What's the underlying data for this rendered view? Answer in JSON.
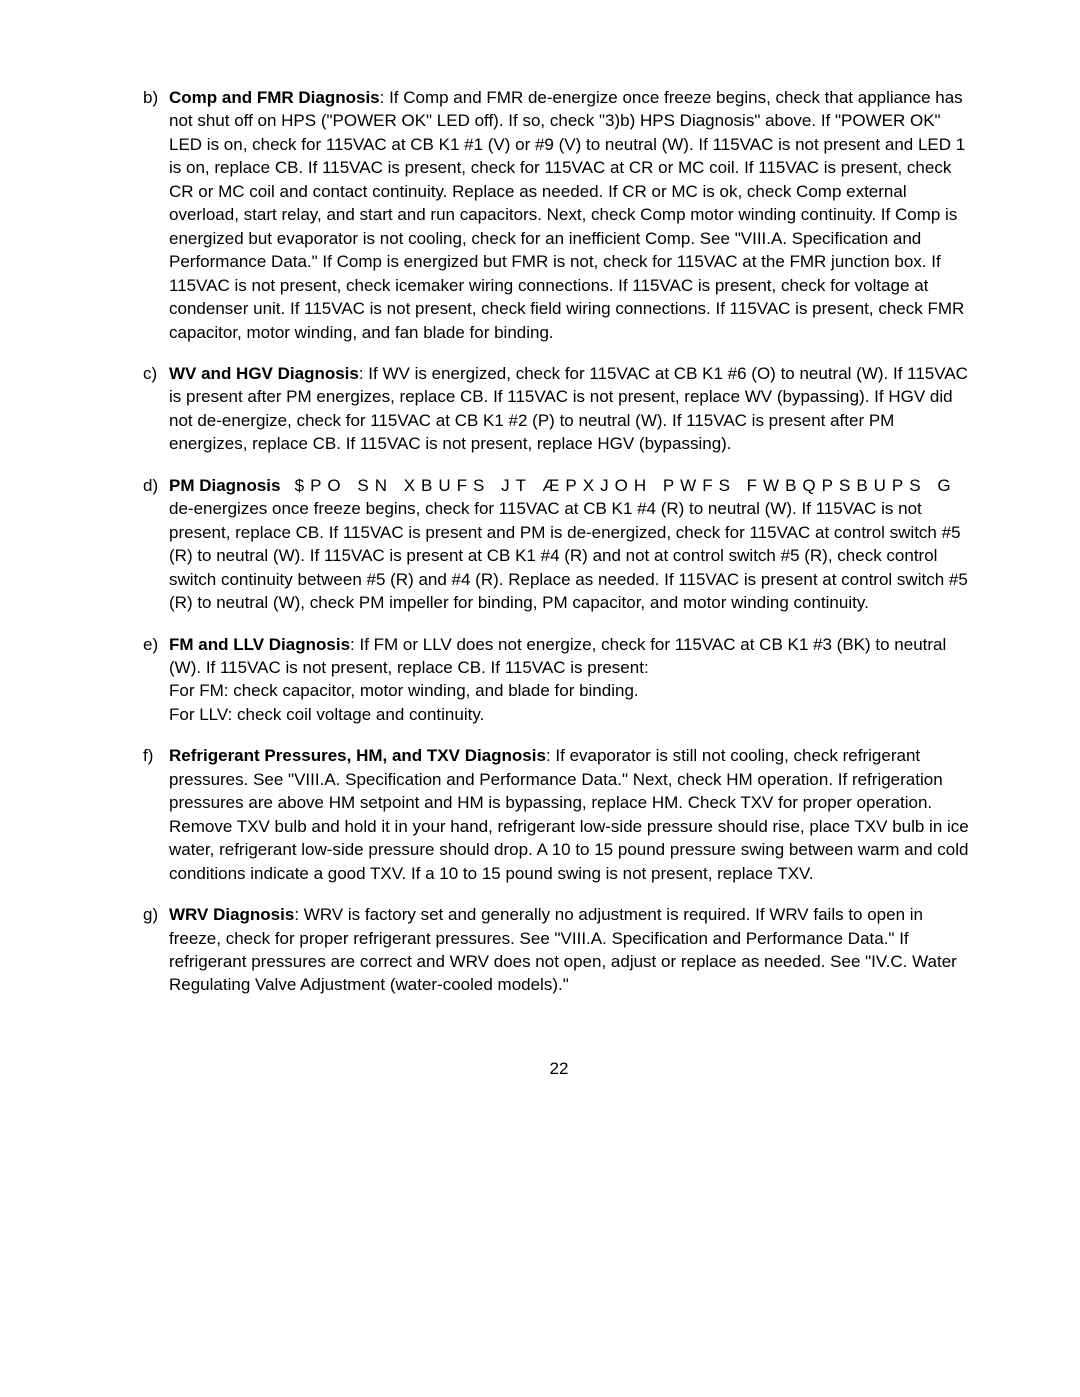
{
  "page_number": "22",
  "items": [
    {
      "marker": "b)",
      "title": "Comp and FMR Diagnosis",
      "text": ": If Comp and FMR de-energize once freeze begins, check that appliance has not shut off on HPS (\"POWER OK\" LED off). If so, check \"3)b) HPS Diagnosis\" above. If \"POWER OK\" LED is on, check for 115VAC at CB K1 #1 (V) or #9 (V) to neutral (W). If 115VAC is not present and LED 1 is on, replace CB. If 115VAC is present, check for 115VAC at CR or MC coil. If 115VAC is present, check CR or MC coil and contact continuity. Replace as needed. If CR or MC is ok, check Comp external overload, start relay, and start and run capacitors. Next, check Comp motor winding continuity. If Comp is energized but evaporator is not cooling, check for an inefficient Comp. See \"VIII.A. Specification and Performance Data.\" If Comp is energized but FMR is not, check for 115VAC at the FMR junction box. If 115VAC is not present, check icemaker wiring connections. If 115VAC is present, check for voltage at condenser unit. If 115VAC is not present, check field wiring connections. If 115VAC is present, check FMR capacitor, motor winding, and fan blade for binding."
    },
    {
      "marker": "c)",
      "title": "WV and HGV Diagnosis",
      "text": ": If WV is energized, check for 115VAC at CB K1 #6 (O) to neutral (W). If 115VAC is present after PM energizes, replace CB. If 115VAC is not present, replace WV (bypassing). If HGV did not de-energize, check for 115VAC at CB K1 #2 (P) to neutral (W). If 115VAC is present after PM energizes, replace CB. If 115VAC is not present, replace HGV (bypassing)."
    },
    {
      "marker": "d)",
      "title": "PM Diagnosis",
      "tracked": "$PO SN XBUFS JT ÆPXJOH PWFS FWBQPSBUPS G",
      "text": "de-energizes once freeze begins, check for 115VAC at CB K1 #4 (R) to neutral (W). If 115VAC is not present, replace CB. If 115VAC is present and PM is de-energized, check for 115VAC at control switch #5 (R) to neutral (W). If 115VAC is present at CB K1 #4 (R) and not at control switch #5 (R), check control switch continuity between #5 (R) and #4 (R). Replace as needed. If 115VAC is present at control switch #5 (R) to neutral (W), check PM impeller for binding, PM capacitor, and motor winding continuity."
    },
    {
      "marker": "e)",
      "title": "FM and LLV Diagnosis",
      "text": ": If FM or LLV does not energize, check for 115VAC at CB K1 #3 (BK) to neutral (W). If 115VAC is not present, replace CB. If 115VAC is present:",
      "extra": [
        "For FM: check capacitor, motor winding, and blade for binding.",
        "For LLV: check coil voltage and continuity."
      ]
    },
    {
      "marker": "f)",
      "title": "Refrigerant Pressures, HM, and TXV Diagnosis",
      "text": ": If evaporator is still not cooling, check refrigerant pressures. See \"VIII.A. Specification and Performance Data.\" Next, check HM operation. If refrigeration pressures are above HM setpoint and HM is bypassing, replace HM. Check TXV for proper operation. Remove TXV bulb and hold it in your hand, refrigerant low-side pressure should rise, place TXV bulb in ice water, refrigerant low-side pressure should drop. A 10 to 15 pound pressure swing between warm and cold conditions indicate a good TXV. If a 10 to 15 pound swing is not present, replace TXV."
    },
    {
      "marker": "g)",
      "title": "WRV Diagnosis",
      "text": ": WRV is factory set and generally no adjustment is required. If WRV fails to open in freeze, check for proper refrigerant pressures. See \"VIII.A. Specification and Performance Data.\" If refrigerant pressures are correct and WRV does not open, adjust or replace as needed. See \"IV.C. Water Regulating Valve Adjustment (water-cooled models).\""
    }
  ]
}
